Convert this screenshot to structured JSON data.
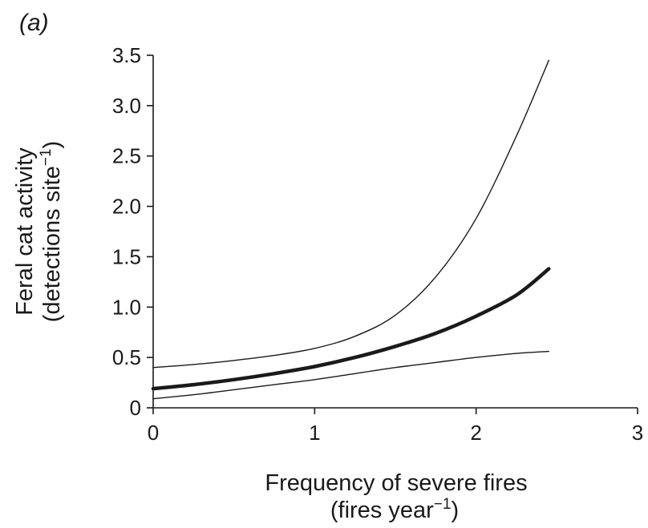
{
  "panel_label": "(a)",
  "chart_data": {
    "type": "line",
    "title": "",
    "xlabel": {
      "line1": "Frequency of severe fires",
      "line2_prefix": "(fires year",
      "line2_sup": "−1",
      "line2_suffix": ")"
    },
    "ylabel": {
      "line1": "Feral cat activity",
      "line2_prefix": "(detections site",
      "line2_sup": "−1",
      "line2_suffix": ")"
    },
    "xlim": [
      0,
      3
    ],
    "ylim": [
      0,
      3.5
    ],
    "x_ticks": [
      0,
      1,
      2,
      3
    ],
    "x_tick_labels": [
      "0",
      "1",
      "2",
      "3"
    ],
    "y_ticks": [
      0,
      0.5,
      1.0,
      1.5,
      2.0,
      2.5,
      3.0,
      3.5
    ],
    "y_tick_labels": [
      "0",
      "0.5",
      "1.0",
      "1.5",
      "2.0",
      "2.5",
      "3.0",
      "3.5"
    ],
    "grid": false,
    "legend": "none",
    "series": [
      {
        "role": "fit",
        "x": [
          0,
          0.25,
          0.5,
          0.75,
          1.0,
          1.25,
          1.5,
          1.75,
          2.0,
          2.25,
          2.45
        ],
        "y": [
          0.19,
          0.23,
          0.28,
          0.34,
          0.41,
          0.5,
          0.61,
          0.74,
          0.91,
          1.12,
          1.38
        ]
      },
      {
        "role": "upper",
        "x": [
          0,
          0.25,
          0.5,
          0.75,
          1.0,
          1.25,
          1.5,
          1.75,
          2.0,
          2.25,
          2.45
        ],
        "y": [
          0.4,
          0.43,
          0.47,
          0.52,
          0.59,
          0.71,
          0.92,
          1.3,
          1.88,
          2.7,
          3.45
        ]
      },
      {
        "role": "lower",
        "x": [
          0,
          0.25,
          0.5,
          0.75,
          1.0,
          1.25,
          1.5,
          1.75,
          2.0,
          2.25,
          2.45
        ],
        "y": [
          0.09,
          0.13,
          0.18,
          0.23,
          0.28,
          0.34,
          0.4,
          0.45,
          0.5,
          0.54,
          0.56
        ]
      }
    ],
    "line_color": "#1a1a1a"
  }
}
